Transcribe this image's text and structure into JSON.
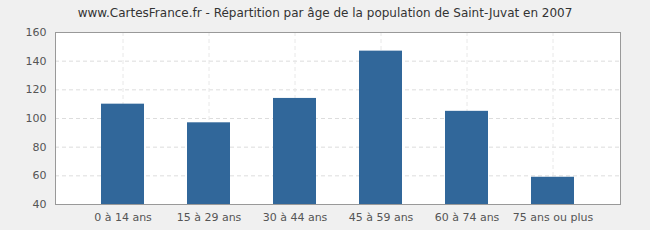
{
  "chart_data": {
    "type": "bar",
    "title": "www.CartesFrance.fr - Répartition par âge de la population de Saint-Juvat en 2007",
    "categories": [
      "0 à 14 ans",
      "15 à 29 ans",
      "30 à 44 ans",
      "45 à 59 ans",
      "60 à 74 ans",
      "75 ans ou plus"
    ],
    "values": [
      110,
      97,
      114,
      147,
      105,
      59
    ],
    "color": "#31679a",
    "ylim": [
      40,
      160
    ],
    "yticks": [
      40,
      60,
      80,
      100,
      120,
      140,
      160
    ],
    "grid": true
  }
}
